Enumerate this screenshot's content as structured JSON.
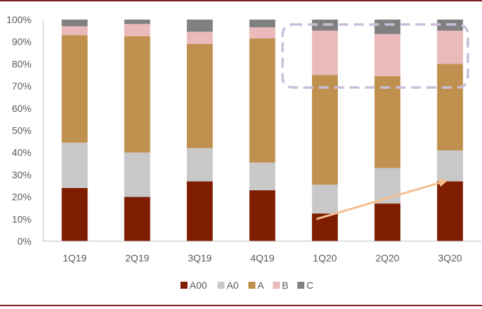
{
  "chart_data": {
    "type": "bar",
    "stacked": true,
    "percent_stacked": true,
    "categories": [
      "1Q19",
      "2Q19",
      "3Q19",
      "4Q19",
      "1Q20",
      "2Q20",
      "3Q20"
    ],
    "series": [
      {
        "name": "A00",
        "color": "#7f1d00",
        "values": [
          24,
          20,
          27,
          23,
          12.5,
          17,
          27
        ]
      },
      {
        "name": "A0",
        "color": "#c8c8c8",
        "values": [
          20.5,
          20,
          15,
          12.5,
          13,
          16,
          14
        ]
      },
      {
        "name": "A",
        "color": "#c0904e",
        "values": [
          48.5,
          52.5,
          47,
          56,
          49.5,
          41.5,
          39
        ]
      },
      {
        "name": "B",
        "color": "#eab9b9",
        "values": [
          4,
          5.5,
          5.5,
          5,
          20,
          19,
          15
        ]
      },
      {
        "name": "C",
        "color": "#808080",
        "values": [
          3,
          2,
          5.5,
          3.5,
          5,
          6.5,
          5
        ]
      }
    ],
    "y_ticks": [
      "0%",
      "10%",
      "20%",
      "30%",
      "40%",
      "50%",
      "60%",
      "70%",
      "80%",
      "90%",
      "100%"
    ],
    "ylim": [
      0,
      100
    ],
    "grid": false,
    "legend_position": "bottom",
    "annotations": {
      "highlight_box": {
        "from_category": "1Q20",
        "to_category": "3Q20",
        "y_range": [
          70,
          100
        ],
        "style": "dashed",
        "color": "#c9bfdc"
      },
      "trend_arrow": {
        "from": {
          "category": "1Q20",
          "y": 10
        },
        "to": {
          "category": "3Q20",
          "y": 27.5
        },
        "color": "#f5bf8f"
      }
    }
  }
}
